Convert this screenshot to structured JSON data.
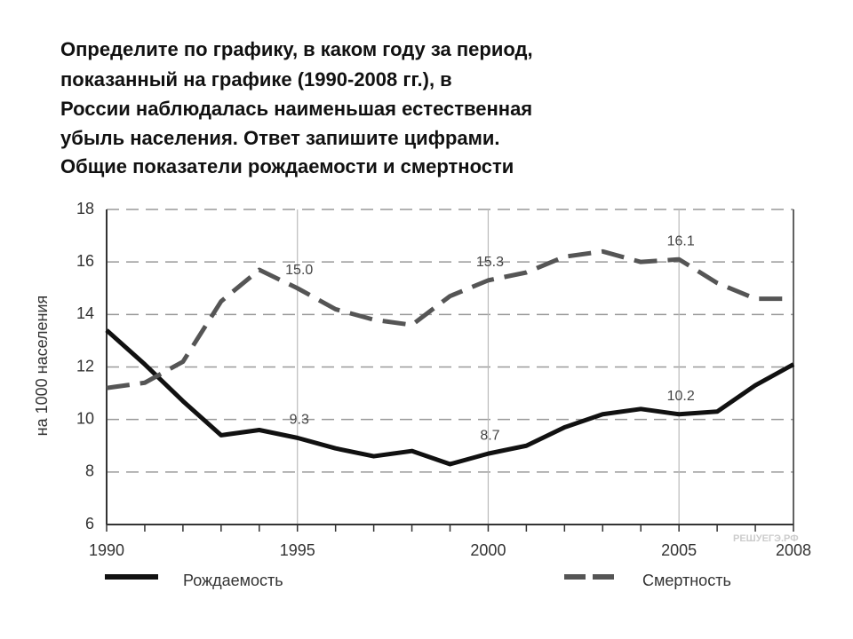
{
  "question": [
    "Определите по графику, в каком году за период,",
    "показанный на графике (1990-2008 гг.), в",
    "России наблюдалась наименьшая естественная",
    "убыль населения. Ответ запишите цифрами."
  ],
  "watermark": "РЕШУЕГЭ.РФ",
  "chart_data": {
    "type": "line",
    "title": "Общие показатели рождаемости и смертности",
    "y_label": "на 1000 населения",
    "x": [
      1990,
      1991,
      1992,
      1993,
      1994,
      1995,
      1996,
      1997,
      1998,
      1999,
      2000,
      2001,
      2002,
      2003,
      2004,
      2005,
      2006,
      2007,
      2008
    ],
    "series": [
      {
        "name": "Рождаемость",
        "color": "#111111",
        "dashed": false,
        "values": [
          13.4,
          12.1,
          10.7,
          9.4,
          9.6,
          9.3,
          8.9,
          8.6,
          8.8,
          8.3,
          8.7,
          9.0,
          9.7,
          10.2,
          10.4,
          10.2,
          10.3,
          11.3,
          12.1
        ],
        "value_labels": [
          null,
          null,
          null,
          null,
          null,
          "9.3",
          null,
          null,
          null,
          null,
          "8.7",
          null,
          null,
          null,
          null,
          "10.2",
          null,
          null,
          null
        ]
      },
      {
        "name": "Смертность",
        "color": "#555555",
        "dashed": true,
        "values": [
          11.2,
          11.4,
          12.2,
          14.5,
          15.7,
          15.0,
          14.2,
          13.8,
          13.6,
          14.7,
          15.3,
          15.6,
          16.2,
          16.4,
          16.0,
          16.1,
          15.2,
          14.6,
          14.6
        ],
        "value_labels": [
          null,
          null,
          null,
          null,
          null,
          "15.0",
          null,
          null,
          null,
          null,
          "15.3",
          null,
          null,
          null,
          null,
          "16.1",
          null,
          null,
          null
        ]
      }
    ],
    "xlim": [
      1990,
      2008
    ],
    "xticks": [
      1990,
      1995,
      2000,
      2005,
      2008
    ],
    "ylim": [
      6,
      18
    ],
    "yticks": [
      6,
      8,
      10,
      12,
      14,
      16,
      18
    ],
    "grid": true
  }
}
